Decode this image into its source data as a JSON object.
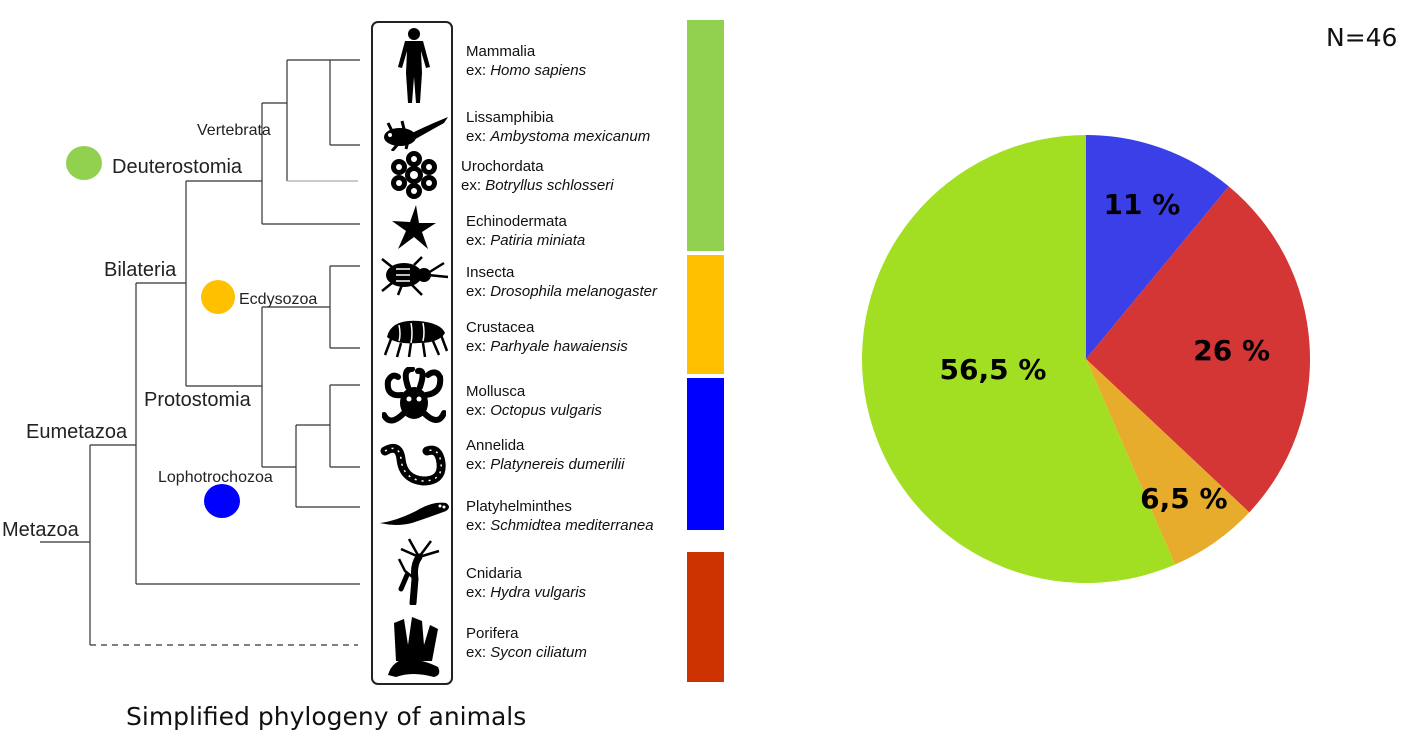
{
  "tree": {
    "title": "Simplified phylogeny of animals",
    "clades": {
      "metazoa": "Metazoa",
      "eumetazoa": "Eumetazoa",
      "bilateria": "Bilateria",
      "deuterostomia": "Deuterostomia",
      "vertebrata": "Vertebrata",
      "protostomia": "Protostomia",
      "ecdysozoa": "Ecdysozoa",
      "lophotrochozoa": "Lophotrochozoa"
    },
    "taxa": [
      {
        "name": "Mammalia",
        "ex_prefix": "ex:",
        "example": "Homo sapiens",
        "icon": "human-icon"
      },
      {
        "name": "Lissamphibia",
        "ex_prefix": "ex:",
        "example": "Ambystoma mexicanum",
        "icon": "axolotl-icon"
      },
      {
        "name": "Urochordata",
        "ex_prefix": "ex:",
        "example": "Botryllus schlosseri",
        "icon": "tunicate-icon"
      },
      {
        "name": "Echinodermata",
        "ex_prefix": "ex:",
        "example": "Patiria miniata",
        "icon": "starfish-icon"
      },
      {
        "name": "Insecta",
        "ex_prefix": "ex:",
        "example": "Drosophila melanogaster",
        "icon": "fly-icon"
      },
      {
        "name": "Crustacea",
        "ex_prefix": "ex:",
        "example": "Parhyale hawaiensis",
        "icon": "amphipod-icon"
      },
      {
        "name": "Mollusca",
        "ex_prefix": "ex:",
        "example": "Octopus vulgaris",
        "icon": "octopus-icon"
      },
      {
        "name": "Annelida",
        "ex_prefix": "ex:",
        "example": "Platynereis dumerilii",
        "icon": "worm-icon"
      },
      {
        "name": "Platyhelminthes",
        "ex_prefix": "ex:",
        "example": "Schmidtea mediterranea",
        "icon": "flatworm-icon"
      },
      {
        "name": "Cnidaria",
        "ex_prefix": "ex:",
        "example": "Hydra vulgaris",
        "icon": "hydra-icon"
      },
      {
        "name": "Porifera",
        "ex_prefix": "ex:",
        "example": "Sycon ciliatum",
        "icon": "sponge-icon"
      }
    ],
    "group_colors": {
      "deuterostomia": "#92d050",
      "ecdysozoa": "#ffc000",
      "lophotrochozoa": "#0000ff",
      "non_bilateria": "#cc3300"
    }
  },
  "chart_data": {
    "type": "pie",
    "annotation": "N=46",
    "slices": [
      {
        "label": "11 %",
        "value": 11,
        "color": "#3b3fe8"
      },
      {
        "label": "26 %",
        "value": 26,
        "color": "#d43535"
      },
      {
        "label": "6,5 %",
        "value": 6.5,
        "color": "#e8ac2c"
      },
      {
        "label": "56,5 %",
        "value": 56.5,
        "color": "#a2df22"
      }
    ],
    "start_angle_deg": 0,
    "direction": "clockwise"
  }
}
